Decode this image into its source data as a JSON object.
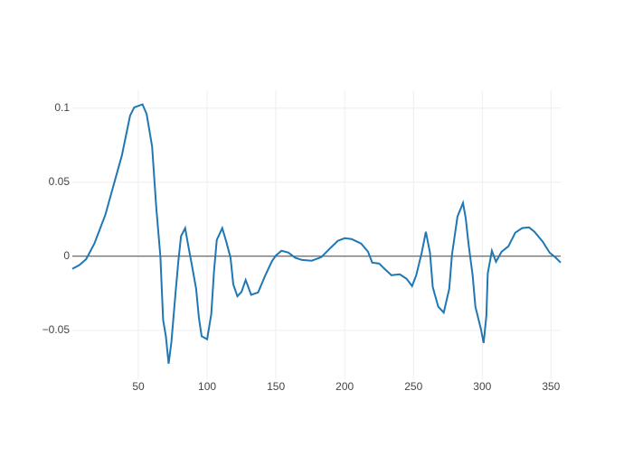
{
  "chart_data": {
    "type": "line",
    "x": [
      2,
      7,
      12,
      18,
      26,
      32,
      38,
      44,
      47,
      53,
      56,
      60,
      63,
      66,
      68,
      70,
      72,
      74,
      77,
      79,
      81,
      84,
      86,
      89,
      92,
      94,
      96,
      100,
      103,
      105,
      107,
      111,
      114,
      117,
      119,
      122,
      125,
      128,
      132,
      137,
      142,
      147,
      150,
      154,
      159,
      164,
      169,
      176,
      183,
      189,
      195,
      200,
      205,
      212,
      217,
      220,
      225,
      229,
      234,
      240,
      245,
      249,
      252,
      256,
      259,
      262,
      264,
      268,
      272,
      276,
      278,
      282,
      286,
      288,
      290,
      293,
      295,
      299,
      301,
      303,
      304,
      307,
      310,
      314,
      319,
      324,
      329,
      334,
      338,
      344,
      349,
      353,
      357
    ],
    "series": [
      {
        "color": "#1f77b4",
        "values": [
          -0.0085,
          -0.006,
          -0.002,
          0.0085,
          0.028,
          0.048,
          0.068,
          0.095,
          0.1005,
          0.1025,
          0.096,
          0.074,
          0.033,
          0,
          -0.043,
          -0.054,
          -0.0725,
          -0.058,
          -0.025,
          -0.004,
          0.0135,
          0.019,
          0.0085,
          -0.0065,
          -0.022,
          -0.0415,
          -0.054,
          -0.056,
          -0.039,
          -0.01,
          0.011,
          0.019,
          0.0095,
          -0.001,
          -0.019,
          -0.027,
          -0.024,
          -0.016,
          -0.026,
          -0.0245,
          -0.0135,
          -0.0035,
          0.0005,
          0.0037,
          0.0025,
          -0.001,
          -0.0025,
          -0.003,
          -0.0006,
          0.005,
          0.0104,
          0.0122,
          0.0116,
          0.0085,
          0.003,
          -0.0043,
          -0.0049,
          -0.0085,
          -0.0128,
          -0.0122,
          -0.0152,
          -0.0201,
          -0.0128,
          0.0024,
          0.0165,
          0.0024,
          -0.0207,
          -0.034,
          -0.038,
          -0.022,
          0.0012,
          0.0268,
          0.036,
          0.0256,
          0.0085,
          -0.0128,
          -0.034,
          -0.049,
          -0.0585,
          -0.04,
          -0.0116,
          0.0037,
          -0.0037,
          0.003,
          0.0067,
          0.0159,
          0.019,
          0.0195,
          0.0165,
          0.0098,
          0.0024,
          -0.0006,
          -0.0043
        ]
      }
    ],
    "xlim": [
      2,
      357
    ],
    "ylim": [
      -0.083,
      0.112
    ],
    "xticks": [
      50,
      100,
      150,
      200,
      250,
      300,
      350
    ],
    "yticks": [
      {
        "value": -0.05,
        "label": "−0.05"
      },
      0,
      0.05,
      0.1
    ],
    "grid": true
  }
}
